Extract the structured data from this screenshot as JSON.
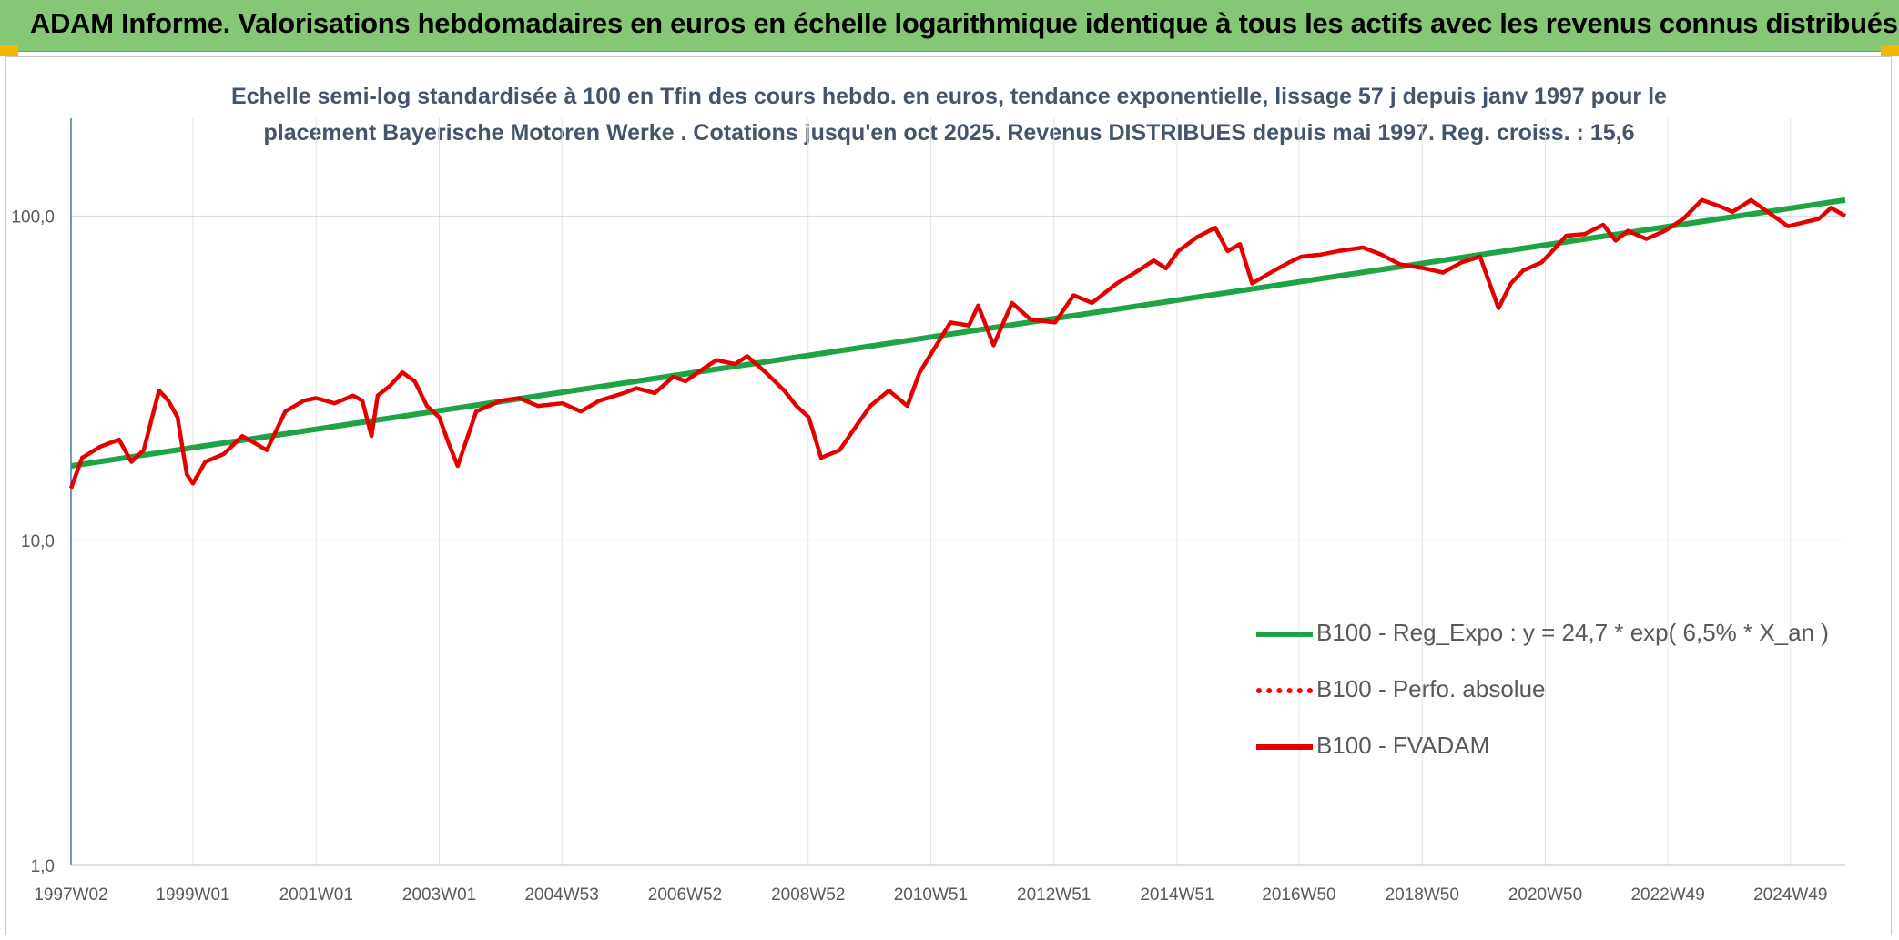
{
  "banner": {
    "title": "ADAM Informe. Valorisations hebdomadaires en euros en échelle logarithmique identique à tous les actifs avec les revenus connus distribués",
    "background": "#84c774",
    "corner_color": "#f2b705"
  },
  "chart_data": {
    "type": "line",
    "title": "Echelle semi-log standardisée à 100 en Tfin des cours hebdo. en euros, tendance exponentielle, lissage 57 j depuis janv 1997 pour le placement Bayerische Motoren Werke . Cotations jusqu'en oct 2025. Revenus DISTRIBUES depuis mai 1997. Reg. croiss. : 15,6",
    "title_lines": [
      "Echelle semi-log standardisée à 100 en Tfin des cours hebdo. en euros, tendance exponentielle, lissage 57 j depuis janv 1997 pour le",
      "placement Bayerische Motoren Werke . Cotations jusqu'en oct 2025. Revenus DISTRIBUES depuis mai 1997. Reg. croiss. : 15,6"
    ],
    "y_scale": "log",
    "ylim": [
      1,
      200
    ],
    "xlim": [
      1997.02,
      2025.83
    ],
    "y_ticks": [
      1,
      10,
      100
    ],
    "y_tick_labels": [
      "1,0",
      "10,0",
      "100,0"
    ],
    "x_tick_labels": [
      "1997W02",
      "1999W01",
      "2001W01",
      "2003W01",
      "2004W53",
      "2006W52",
      "2008W52",
      "2010W51",
      "2012W51",
      "2014W51",
      "2016W50",
      "2018W50",
      "2020W50",
      "2022W49",
      "2024W49"
    ],
    "x_ticks": [
      1997.02,
      1999.0,
      2001.0,
      2003.0,
      2004.99,
      2006.99,
      2008.99,
      2010.98,
      2012.98,
      2014.98,
      2016.96,
      2018.96,
      2020.96,
      2022.95,
      2024.94
    ],
    "grid": true,
    "legend_position": "bottom-right",
    "series": [
      {
        "name": "B100 - Reg_Expo : y = 24,7 * exp( 6,5% *  X_an )",
        "color": "#1ea345",
        "style": "solid",
        "x": [
          1997.02,
          2025.83
        ],
        "y": [
          17.0,
          112.0
        ]
      },
      {
        "name": "B100 - Perfo. absolue",
        "color": "#ff0000",
        "style": "dotted",
        "x": [],
        "y": []
      },
      {
        "name": "B100 - FVADAM",
        "color": "#e50000",
        "style": "solid",
        "x": [
          1997.02,
          1997.2,
          1997.5,
          1997.8,
          1998.0,
          1998.2,
          1998.45,
          1998.6,
          1998.75,
          1998.9,
          1999.0,
          1999.2,
          1999.5,
          1999.8,
          2000.0,
          2000.2,
          2000.5,
          2000.8,
          2001.0,
          2001.3,
          2001.6,
          2001.75,
          2001.9,
          2002.0,
          2002.2,
          2002.4,
          2002.6,
          2002.8,
          2003.0,
          2003.15,
          2003.3,
          2003.6,
          2004.0,
          2004.3,
          2004.6,
          2005.0,
          2005.3,
          2005.6,
          2006.0,
          2006.2,
          2006.5,
          2006.8,
          2007.0,
          2007.3,
          2007.5,
          2007.8,
          2008.0,
          2008.3,
          2008.6,
          2008.8,
          2009.0,
          2009.2,
          2009.5,
          2009.8,
          2010.0,
          2010.3,
          2010.6,
          2010.8,
          2011.0,
          2011.3,
          2011.6,
          2011.75,
          2012.0,
          2012.3,
          2012.6,
          2013.0,
          2013.3,
          2013.6,
          2014.0,
          2014.3,
          2014.6,
          2014.8,
          2015.0,
          2015.3,
          2015.6,
          2015.8,
          2016.0,
          2016.2,
          2016.5,
          2016.8,
          2017.0,
          2017.3,
          2017.6,
          2018.0,
          2018.3,
          2018.6,
          2019.0,
          2019.3,
          2019.6,
          2019.9,
          2020.2,
          2020.4,
          2020.6,
          2020.9,
          2021.1,
          2021.3,
          2021.6,
          2021.9,
          2022.1,
          2022.3,
          2022.6,
          2022.9,
          2023.2,
          2023.5,
          2023.8,
          2024.0,
          2024.3,
          2024.6,
          2024.9,
          2025.2,
          2025.4,
          2025.6,
          2025.83
        ],
        "y": [
          14.5,
          18.0,
          19.5,
          20.5,
          17.5,
          19.0,
          29.0,
          27.0,
          24.0,
          16.0,
          15.0,
          17.5,
          18.5,
          21.0,
          20.0,
          19.0,
          25.0,
          27.0,
          27.5,
          26.5,
          28.0,
          27.0,
          21.0,
          28.0,
          30.0,
          33.0,
          31.0,
          26.0,
          24.0,
          20.0,
          17.0,
          25.0,
          27.0,
          27.5,
          26.0,
          26.5,
          25.0,
          27.0,
          28.5,
          29.5,
          28.5,
          32.0,
          31.0,
          34.0,
          36.0,
          35.0,
          37.0,
          33.0,
          29.0,
          26.0,
          24.0,
          18.0,
          19.0,
          23.0,
          26.0,
          29.0,
          26.0,
          33.0,
          38.0,
          47.0,
          46.0,
          53.0,
          40.0,
          54.0,
          48.0,
          47.0,
          57.0,
          54.0,
          62.0,
          67.0,
          73.0,
          69.0,
          78.0,
          86.0,
          92.0,
          78.0,
          82.0,
          62.0,
          67.0,
          72.0,
          75.0,
          76.0,
          78.0,
          80.0,
          76.0,
          71.0,
          69.0,
          67.0,
          72.0,
          75.0,
          52.0,
          62.0,
          68.0,
          72.0,
          79.0,
          87.0,
          88.0,
          94.0,
          84.0,
          90.0,
          85.0,
          90.0,
          98.0,
          112.0,
          107.0,
          103.0,
          112.0,
          102.0,
          93.0,
          96.0,
          98.0,
          106.0,
          100.0
        ]
      }
    ]
  }
}
